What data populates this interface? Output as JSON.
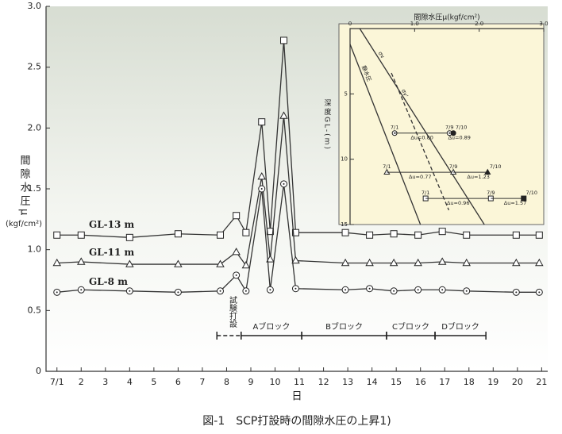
{
  "chart_data": [
    {
      "type": "line",
      "ylabel": "間隙水圧μ",
      "yunit": "(kgf/cm²)",
      "xlabel": "日",
      "caption": "図-1　SCP打設時の間隙水圧の上昇1)",
      "xlim": [
        0.55,
        21.25
      ],
      "ylim": [
        0,
        3.0
      ],
      "yticks": [
        0,
        0.5,
        {
          "value": 1,
          "label": "1.0"
        },
        1.5,
        {
          "value": 2,
          "label": "2.0"
        },
        2.5,
        {
          "value": 3,
          "label": "3.0"
        }
      ],
      "xticks": [
        {
          "value": 1,
          "label": "7/1"
        },
        2,
        3,
        4,
        5,
        6,
        7,
        8,
        9,
        10,
        11,
        12,
        13,
        14,
        15,
        16,
        17,
        18,
        19,
        20,
        21
      ],
      "x": [
        1,
        2,
        4,
        6,
        7.74,
        8.4,
        8.8,
        9.45,
        9.8,
        10.36,
        10.85,
        12.9,
        13.9,
        14.9,
        15.9,
        16.9,
        17.9,
        19.95,
        20.9
      ],
      "series": [
        {
          "name": "GL-13 m",
          "marker": "square",
          "color": "#333",
          "values": [
            1.12,
            1.12,
            1.1,
            1.13,
            1.12,
            1.28,
            1.14,
            2.05,
            1.15,
            2.72,
            1.14,
            1.14,
            1.12,
            1.13,
            1.12,
            1.15,
            1.12,
            1.12,
            1.12
          ]
        },
        {
          "name": "GL-11 m",
          "marker": "triangle",
          "color": "#333",
          "values": [
            0.89,
            0.9,
            0.88,
            0.88,
            0.88,
            0.98,
            0.87,
            1.6,
            0.92,
            2.1,
            0.91,
            0.89,
            0.89,
            0.89,
            0.89,
            0.9,
            0.89,
            0.89,
            0.89
          ]
        },
        {
          "name": "GL-8 m",
          "marker": "circle",
          "color": "#333",
          "values": [
            0.65,
            0.67,
            0.66,
            0.65,
            0.66,
            0.79,
            0.66,
            1.5,
            0.67,
            1.54,
            0.68,
            0.67,
            0.68,
            0.66,
            0.67,
            0.67,
            0.66,
            0.65,
            0.65
          ]
        }
      ],
      "periods": [
        {
          "text": "試験打設",
          "x": [
            7.6,
            8.6
          ],
          "dashed": true,
          "vertical": true
        },
        {
          "text": "Aブロック",
          "x": [
            8.6,
            11.1
          ]
        },
        {
          "text": "Bブロック",
          "x": [
            11.1,
            14.6
          ]
        },
        {
          "text": "Cブロック",
          "x": [
            14.6,
            16.6
          ]
        },
        {
          "text": "Dブロック",
          "x": [
            16.6,
            18.7
          ]
        }
      ]
    },
    {
      "type": "line",
      "title": "間隙水圧μ(kgf/cm²)",
      "ylabel": "深度GL-(m)",
      "xlim": [
        0,
        3.0
      ],
      "ylim": [
        15,
        0
      ],
      "xticks": [
        0,
        {
          "value": 1,
          "label": "1.0"
        },
        {
          "value": 2,
          "label": "2.0"
        },
        {
          "value": 3,
          "label": "3.0"
        }
      ],
      "yticks": [
        5,
        10,
        15
      ],
      "series": [
        {
          "name": "σv",
          "dashed": false,
          "x": [
            0.15,
            2.08
          ],
          "values": [
            0,
            15
          ]
        },
        {
          "name": "静水圧",
          "dashed": false,
          "x": [
            0,
            1.09
          ],
          "values": [
            1.2,
            15
          ]
        },
        {
          "name": "σv'",
          "dashed": true,
          "x": [
            0.64,
            1.53
          ],
          "values": [
            3.4,
            13.9
          ]
        }
      ],
      "rows": [
        {
          "depth": 8,
          "marker": "circle",
          "points": [
            {
              "x": 0.69,
              "label": "7/1",
              "filled": false
            },
            {
              "x": 1.54,
              "label": "7/9",
              "filled": false
            },
            {
              "x": 1.6,
              "label": "7/10",
              "filled": true
            }
          ],
          "du": [
            "Δu=0.80",
            "Δu=0.89"
          ]
        },
        {
          "depth": 11,
          "marker": "triangle",
          "points": [
            {
              "x": 0.57,
              "label": "7/1",
              "filled": false
            },
            {
              "x": 1.6,
              "label": "7/9",
              "filled": false
            },
            {
              "x": 2.13,
              "label": "7/10",
              "filled": true
            }
          ],
          "du": [
            "Δu=0.77",
            "Δu=1.23"
          ]
        },
        {
          "depth": 13,
          "marker": "square",
          "points": [
            {
              "x": 1.17,
              "label": "7/1",
              "filled": false
            },
            {
              "x": 2.18,
              "label": "7/9",
              "filled": false
            },
            {
              "x": 2.69,
              "label": "7/10",
              "filled": true
            }
          ],
          "du": [
            "Δu=0.96",
            "Δu=1.57"
          ]
        }
      ]
    }
  ]
}
